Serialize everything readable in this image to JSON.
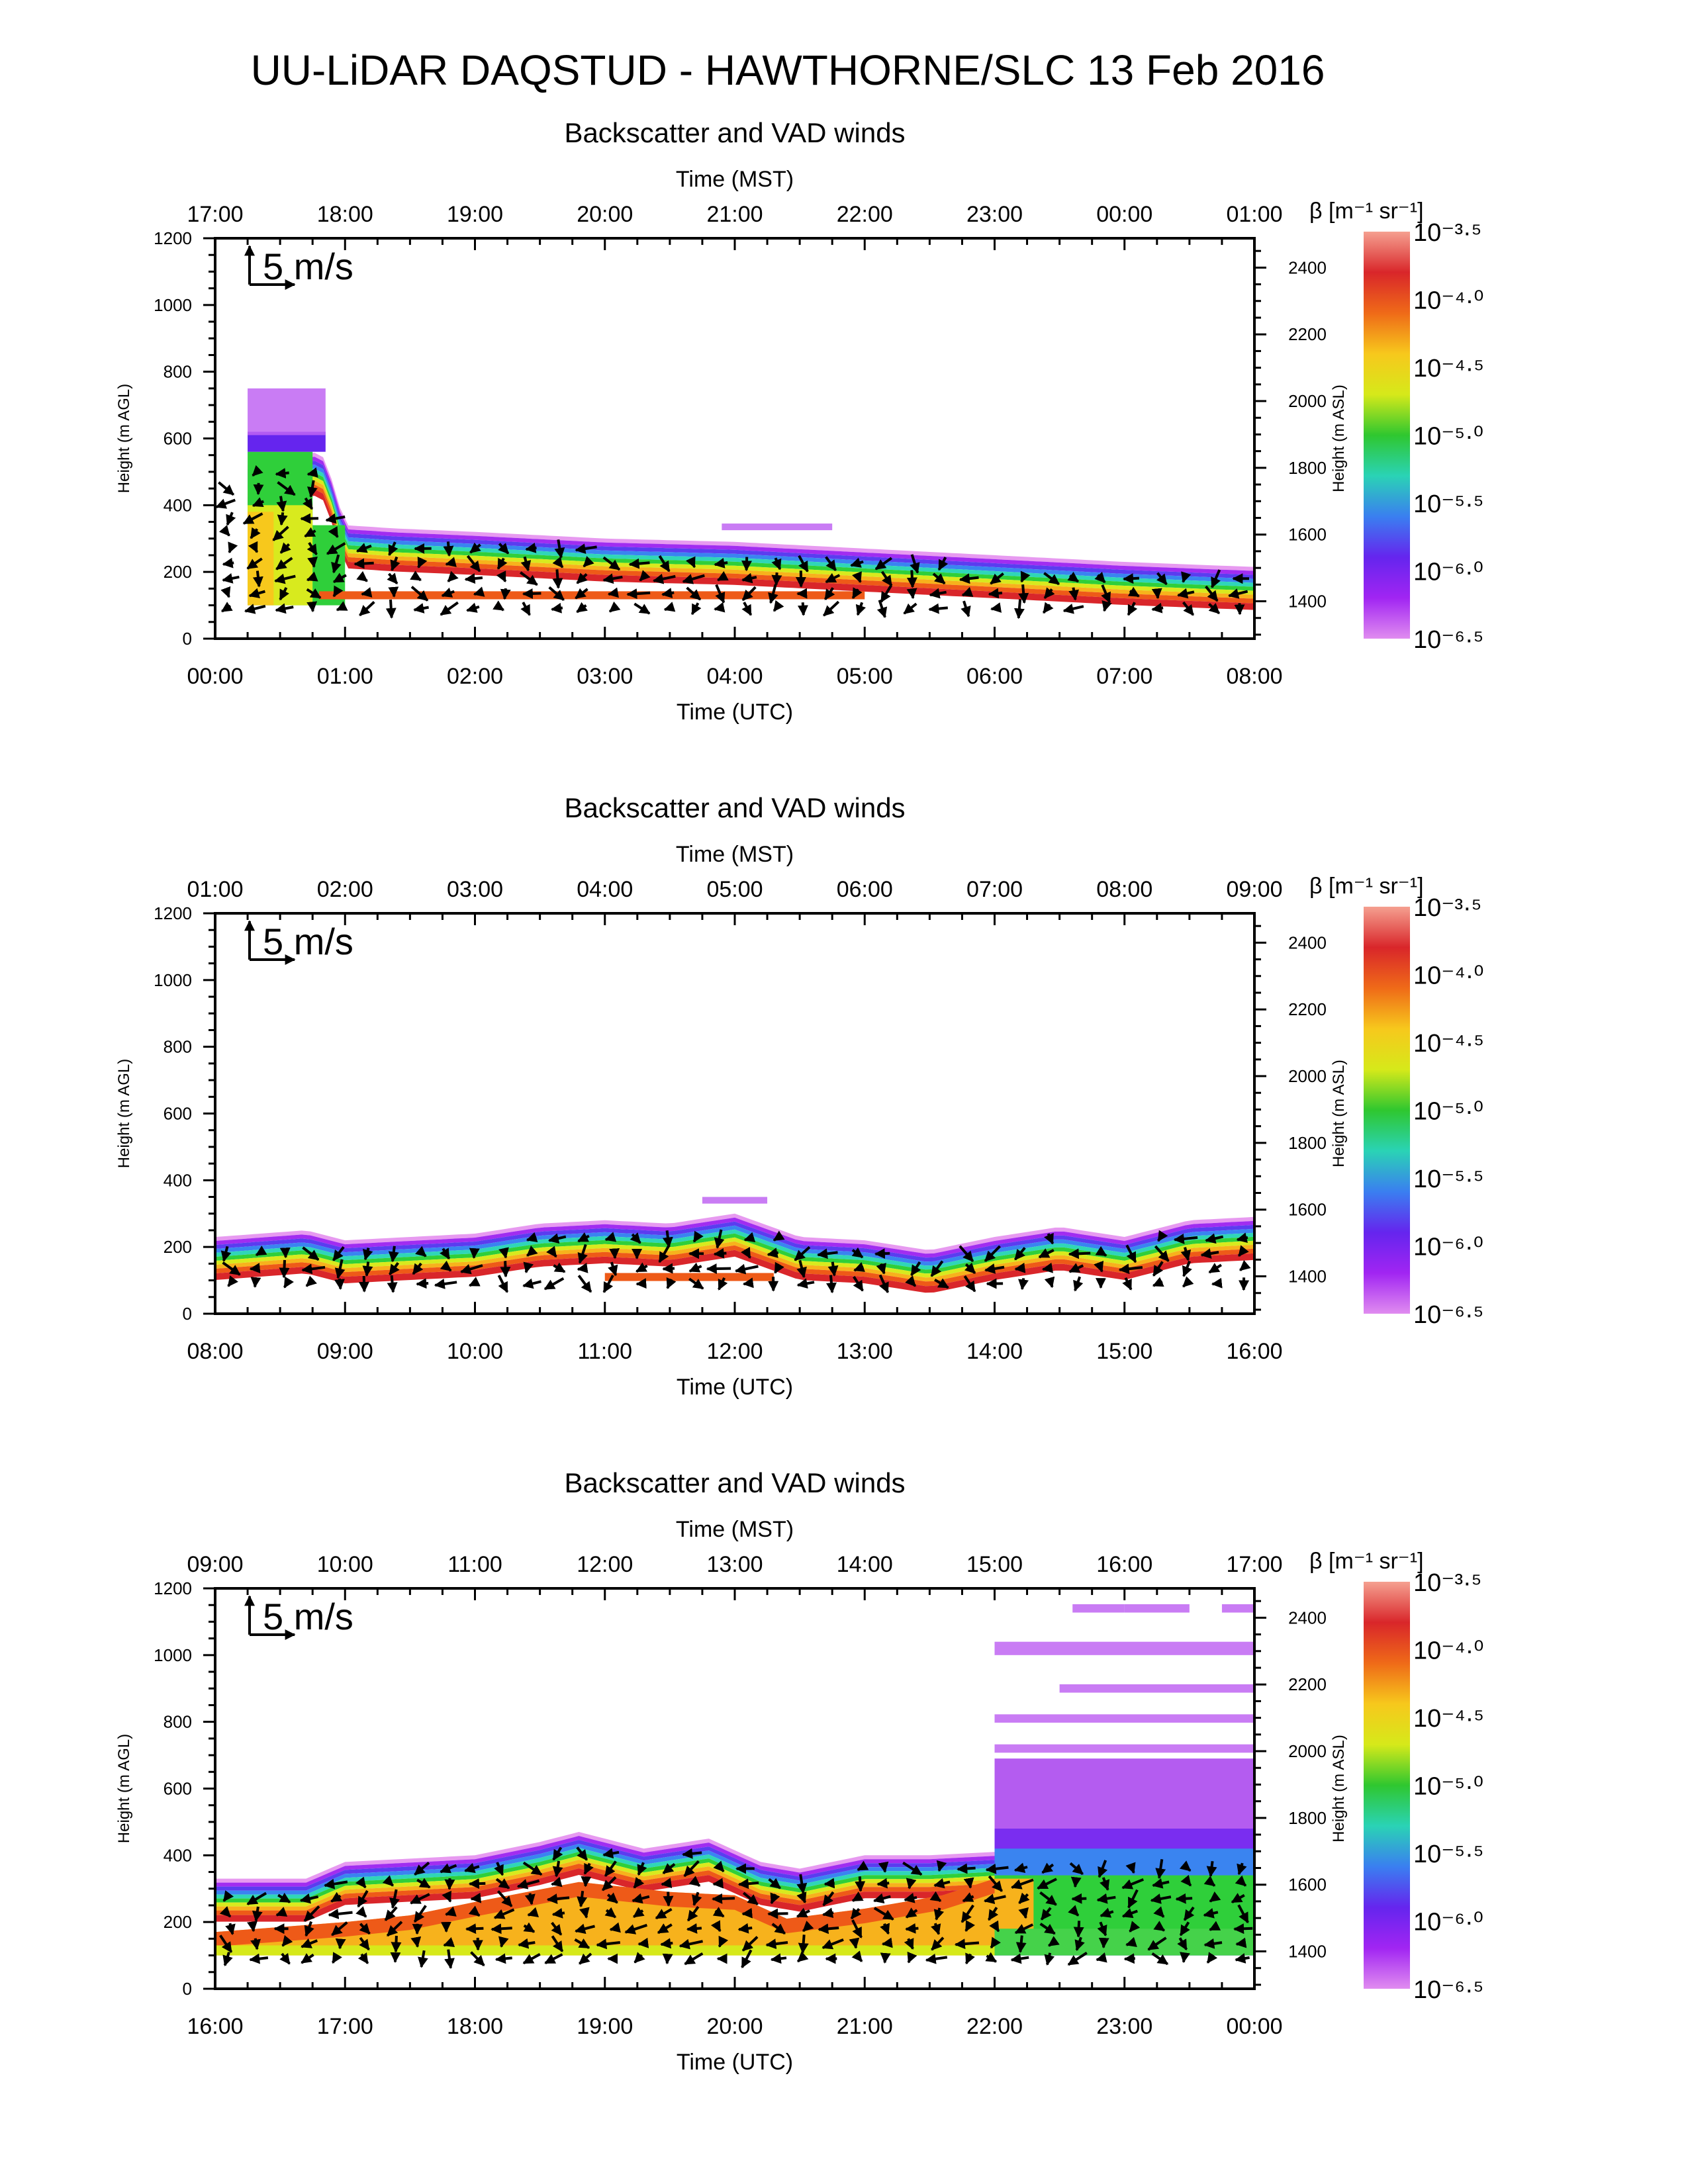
{
  "figure": {
    "title": "UU-LiDAR DAQSTUD - HAWTHORNE/SLC 13 Feb 2016"
  },
  "colorbar": {
    "label": "β [m⁻¹ sr⁻¹]",
    "tick_labels": [
      "10⁻³·⁵",
      "10⁻⁴·⁰",
      "10⁻⁴·⁵",
      "10⁻⁵·⁰",
      "10⁻⁵·⁵",
      "10⁻⁶·⁰",
      "10⁻⁶·⁵"
    ],
    "log10_values": [
      -3.5,
      -4.0,
      -4.5,
      -5.0,
      -5.5,
      -6.0,
      -6.5
    ],
    "colors": [
      "#f5a090",
      "#d9262a",
      "#ef6a18",
      "#f7c81c",
      "#d6e91a",
      "#2fc72f",
      "#2ad3b5",
      "#3a7ff0",
      "#6525ee",
      "#a125f2",
      "#e08cf0"
    ]
  },
  "reference_vector": {
    "label": "5 m/s"
  },
  "chart_data": [
    {
      "type": "heatmap",
      "title": "Backscatter and VAD winds",
      "xlabel": "Time (UTC)",
      "xlabel_top": "Time (MST)",
      "ylabel": "Height (m AGL)",
      "ylabel_right": "Height (m ASL)",
      "x_ticks": [
        "00:00",
        "01:00",
        "02:00",
        "03:00",
        "04:00",
        "05:00",
        "06:00",
        "07:00",
        "08:00"
      ],
      "x_ticks_top": [
        "17:00",
        "18:00",
        "19:00",
        "20:00",
        "21:00",
        "22:00",
        "23:00",
        "00:00",
        "01:00"
      ],
      "y_ticks": [
        0,
        200,
        400,
        600,
        800,
        1000,
        1200
      ],
      "y_ticks_right": [
        1400,
        1600,
        1800,
        2000,
        2200,
        2400
      ],
      "xlim_hours_utc": [
        0,
        8
      ],
      "ylim_m_agl": [
        0,
        1200
      ],
      "aerosol_layer_top_m_agl": {
        "hours": [
          0.25,
          0.75,
          0.85,
          1.0,
          1.4,
          2.0,
          3.0,
          4.0,
          5.0,
          6.0,
          7.0,
          8.0
        ],
        "values": [
          520,
          560,
          540,
          340,
          330,
          320,
          300,
          290,
          270,
          250,
          230,
          215
        ]
      },
      "elevated_features": [
        {
          "from_hours": 0.25,
          "to_hours": 0.85,
          "height_m_agl": 680,
          "depth_m": 140
        },
        {
          "from_hours": 3.9,
          "to_hours": 4.75,
          "height_m_agl": 335,
          "depth_m": 20
        }
      ],
      "low_scatter_layer_m_agl": {
        "from_hours": 0.8,
        "to_hours": 5.0,
        "height": 130
      }
    },
    {
      "type": "heatmap",
      "title": "Backscatter and VAD winds",
      "xlabel": "Time (UTC)",
      "xlabel_top": "Time (MST)",
      "ylabel": "Height (m AGL)",
      "ylabel_right": "Height (m ASL)",
      "x_ticks": [
        "08:00",
        "09:00",
        "10:00",
        "11:00",
        "12:00",
        "13:00",
        "14:00",
        "15:00",
        "16:00"
      ],
      "x_ticks_top": [
        "01:00",
        "02:00",
        "03:00",
        "04:00",
        "05:00",
        "06:00",
        "07:00",
        "08:00",
        "09:00"
      ],
      "y_ticks": [
        0,
        200,
        400,
        600,
        800,
        1000,
        1200
      ],
      "y_ticks_right": [
        1400,
        1600,
        1800,
        2000,
        2200,
        2400
      ],
      "xlim_hours_utc": [
        8,
        16
      ],
      "ylim_m_agl": [
        0,
        1200
      ],
      "aerosol_layer_top_m_agl": {
        "hours": [
          8.0,
          8.7,
          9.0,
          10.0,
          10.5,
          11.0,
          11.5,
          12.0,
          12.5,
          13.0,
          13.5,
          14.0,
          14.5,
          15.0,
          15.5,
          16.0
        ],
        "values": [
          230,
          250,
          220,
          240,
          270,
          280,
          270,
          300,
          230,
          220,
          190,
          230,
          260,
          230,
          280,
          290
        ]
      },
      "elevated_features": [
        {
          "from_hours": 11.75,
          "to_hours": 12.25,
          "height_m_agl": 340,
          "depth_m": 20
        }
      ],
      "low_scatter_layer_m_agl": {
        "from_hours": 11.0,
        "to_hours": 12.3,
        "height": 110
      }
    },
    {
      "type": "heatmap",
      "title": "Backscatter and VAD winds",
      "xlabel": "Time (UTC)",
      "xlabel_top": "Time (MST)",
      "ylabel": "Height (m AGL)",
      "ylabel_right": "Height (m ASL)",
      "x_ticks": [
        "16:00",
        "17:00",
        "18:00",
        "19:00",
        "20:00",
        "21:00",
        "22:00",
        "23:00",
        "00:00"
      ],
      "x_ticks_top": [
        "09:00",
        "10:00",
        "11:00",
        "12:00",
        "13:00",
        "14:00",
        "15:00",
        "16:00",
        "17:00"
      ],
      "y_ticks": [
        0,
        200,
        400,
        600,
        800,
        1000,
        1200
      ],
      "y_ticks_right": [
        1400,
        1600,
        1800,
        2000,
        2200,
        2400
      ],
      "xlim_hours_utc": [
        16,
        24
      ],
      "ylim_m_agl": [
        0,
        1200
      ],
      "aerosol_layer_top_m_agl": {
        "hours": [
          16.0,
          16.7,
          17.0,
          17.5,
          18.0,
          18.5,
          18.8,
          19.3,
          19.8,
          20.2,
          20.5,
          21.0,
          21.5,
          22.0
        ],
        "values": [
          330,
          330,
          380,
          390,
          400,
          440,
          470,
          420,
          450,
          380,
          360,
          400,
          400,
          410
        ]
      },
      "aerosol_layer_bottom_m_agl": {
        "hours": [
          16.0,
          17.0,
          17.5,
          18.0,
          18.8,
          19.5,
          20.0,
          20.4,
          21.0,
          21.6,
          22.0
        ],
        "values": [
          170,
          200,
          220,
          260,
          320,
          290,
          280,
          210,
          240,
          280,
          330
        ]
      },
      "mixed_layer_from_hours": 22.0,
      "elevated_features": [
        {
          "from_hours": 22.6,
          "to_hours": 23.0,
          "height_m_agl": 1140,
          "depth_m": 25
        },
        {
          "from_hours": 23.0,
          "to_hours": 23.5,
          "height_m_agl": 1140,
          "depth_m": 25
        },
        {
          "from_hours": 23.75,
          "to_hours": 24.0,
          "height_m_agl": 1140,
          "depth_m": 25
        },
        {
          "from_hours": 22.0,
          "to_hours": 24.0,
          "height_m_agl": 1020,
          "depth_m": 40
        },
        {
          "from_hours": 22.5,
          "to_hours": 24.0,
          "height_m_agl": 900,
          "depth_m": 25
        },
        {
          "from_hours": 22.0,
          "to_hours": 24.0,
          "height_m_agl": 810,
          "depth_m": 25
        },
        {
          "from_hours": 22.0,
          "to_hours": 24.0,
          "height_m_agl": 720,
          "depth_m": 25
        }
      ]
    }
  ]
}
